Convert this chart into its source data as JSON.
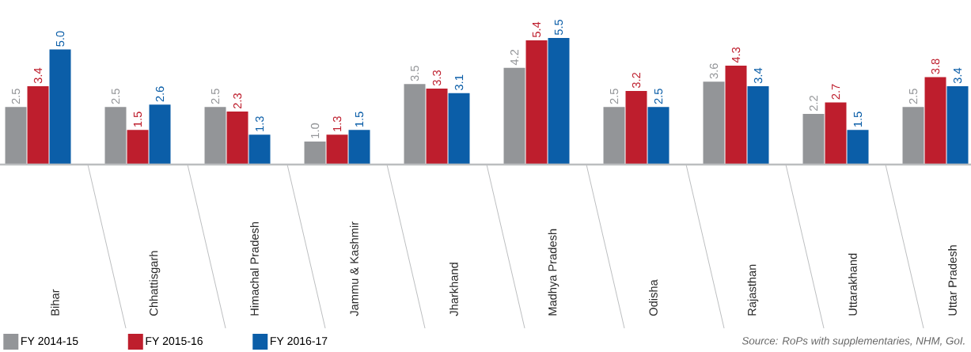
{
  "chart_data": {
    "type": "bar",
    "categories": [
      "Bihar",
      "Chhattisgarh",
      "Himachal Pradesh",
      "Jammu & Kashmir",
      "Jharkhand",
      "Madhya Pradesh",
      "Odisha",
      "Rajasthan",
      "Uttarakhand",
      "Uttar Pradesh"
    ],
    "series": [
      {
        "name": "FY 2014-15",
        "color": "#939598",
        "values": [
          2.5,
          2.5,
          2.5,
          1.0,
          3.5,
          4.2,
          2.5,
          3.6,
          2.2,
          2.5
        ],
        "value_labels": [
          "2.5",
          "2.5",
          "2.5",
          "1.0",
          "3.5",
          "4.2",
          "2.5",
          "3.6",
          "2.2",
          "2.5"
        ]
      },
      {
        "name": "FY 2015-16",
        "color": "#be1e2d",
        "values": [
          3.4,
          1.5,
          2.3,
          1.3,
          3.3,
          5.4,
          3.2,
          4.3,
          2.7,
          3.8
        ],
        "value_labels": [
          "3.4",
          "1.5",
          "2.3",
          "1.3",
          "3.3",
          "5.4",
          "3.2",
          "4.3",
          "2.7",
          "3.8"
        ]
      },
      {
        "name": "FY 2016-17",
        "color": "#0b5ea8",
        "values": [
          5.0,
          2.6,
          1.3,
          1.5,
          3.1,
          5.5,
          2.5,
          3.4,
          1.5,
          3.4
        ],
        "value_labels": [
          "5.0",
          "2.6",
          "1.3",
          "1.5",
          "3.1",
          "5.5",
          "2.5",
          "3.4",
          "1.5",
          "3.4"
        ]
      }
    ],
    "legend": "bottom",
    "annotations": [
      "Source:  RoPs with supplementaries, NHM, GoI."
    ]
  }
}
